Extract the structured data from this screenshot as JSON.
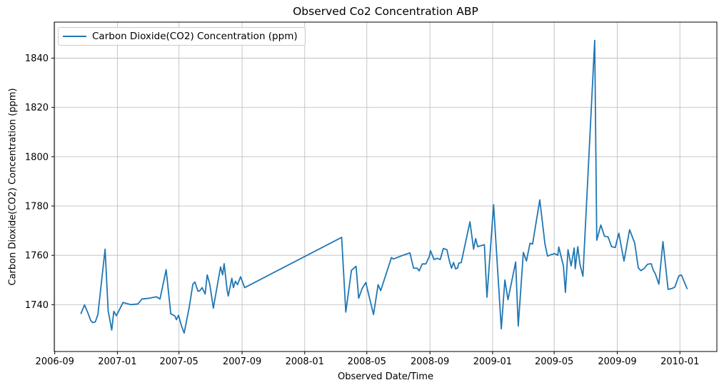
{
  "chart_data": {
    "type": "line",
    "title": "Observed Co2 Concentration ABP",
    "xlabel": "Observed Date/Time",
    "ylabel": "Carbon Dioxide(CO2) Concentration (ppm)",
    "legend": [
      {
        "label": "Carbon Dioxide(CO2) Concentration (ppm)",
        "color": "#1f77b4"
      }
    ],
    "legend_position": "upper left",
    "grid": true,
    "line_color": "#1f77b4",
    "grid_color": "#c0c0c0",
    "spine_color": "#000000",
    "background": "#ffffff",
    "x_ticks": [
      "2006-09",
      "2007-01",
      "2007-05",
      "2007-09",
      "2008-01",
      "2008-05",
      "2008-09",
      "2009-01",
      "2009-05",
      "2009-09",
      "2010-01"
    ],
    "y_ticks": [
      1740,
      1760,
      1780,
      1800,
      1820,
      1840
    ],
    "xlim": [
      "2006-08-31",
      "2010-03-14"
    ],
    "ylim": [
      1721,
      1854.6
    ],
    "series": [
      {
        "name": "Carbon Dioxide(CO2) Concentration (ppm)",
        "points": [
          [
            "2006-10-22",
            1736.4
          ],
          [
            "2006-10-29",
            1739.9
          ],
          [
            "2006-11-05",
            1736.4
          ],
          [
            "2006-11-10",
            1733.6
          ],
          [
            "2006-11-14",
            1732.7
          ],
          [
            "2006-11-19",
            1733.0
          ],
          [
            "2006-11-24",
            1736.0
          ],
          [
            "2006-12-08",
            1762.5
          ],
          [
            "2006-12-14",
            1737.5
          ],
          [
            "2006-12-21",
            1729.7
          ],
          [
            "2006-12-25",
            1737.3
          ],
          [
            "2006-12-30",
            1735.5
          ],
          [
            "2007-01-12",
            1740.9
          ],
          [
            "2007-01-27",
            1740.0
          ],
          [
            "2007-02-10",
            1740.3
          ],
          [
            "2007-02-18",
            1742.3
          ],
          [
            "2007-03-04",
            1742.6
          ],
          [
            "2007-03-18",
            1743.2
          ],
          [
            "2007-03-25",
            1742.3
          ],
          [
            "2007-04-06",
            1754.2
          ],
          [
            "2007-04-15",
            1736.3
          ],
          [
            "2007-04-23",
            1735.4
          ],
          [
            "2007-04-26",
            1733.9
          ],
          [
            "2007-04-30",
            1735.7
          ],
          [
            "2007-05-06",
            1731.3
          ],
          [
            "2007-05-11",
            1728.5
          ],
          [
            "2007-05-21",
            1739.1
          ],
          [
            "2007-05-28",
            1748.3
          ],
          [
            "2007-06-01",
            1749.2
          ],
          [
            "2007-06-07",
            1745.4
          ],
          [
            "2007-06-11",
            1745.7
          ],
          [
            "2007-06-15",
            1746.9
          ],
          [
            "2007-06-21",
            1744.3
          ],
          [
            "2007-06-25",
            1752.1
          ],
          [
            "2007-06-30",
            1748.3
          ],
          [
            "2007-07-07",
            1738.6
          ],
          [
            "2007-07-21",
            1755.3
          ],
          [
            "2007-07-25",
            1752.1
          ],
          [
            "2007-07-28",
            1756.6
          ],
          [
            "2007-08-03",
            1745.7
          ],
          [
            "2007-08-05",
            1743.5
          ],
          [
            "2007-08-12",
            1750.7
          ],
          [
            "2007-08-15",
            1746.9
          ],
          [
            "2007-08-19",
            1749.5
          ],
          [
            "2007-08-23",
            1748.1
          ],
          [
            "2007-08-29",
            1751.3
          ],
          [
            "2007-09-06",
            1746.9
          ],
          [
            "2008-03-13",
            1767.3
          ],
          [
            "2008-03-21",
            1737.0
          ],
          [
            "2008-04-01",
            1753.9
          ],
          [
            "2008-04-10",
            1755.6
          ],
          [
            "2008-04-15",
            1742.6
          ],
          [
            "2008-04-22",
            1746.6
          ],
          [
            "2008-04-29",
            1749.0
          ],
          [
            "2008-05-14",
            1736.0
          ],
          [
            "2008-05-23",
            1748.1
          ],
          [
            "2008-05-28",
            1745.7
          ],
          [
            "2008-06-18",
            1759.1
          ],
          [
            "2008-06-22",
            1758.5
          ],
          [
            "2008-07-10",
            1760.0
          ],
          [
            "2008-07-24",
            1761.0
          ],
          [
            "2008-07-31",
            1754.8
          ],
          [
            "2008-08-07",
            1754.8
          ],
          [
            "2008-08-11",
            1753.7
          ],
          [
            "2008-08-17",
            1756.5
          ],
          [
            "2008-08-24",
            1756.5
          ],
          [
            "2008-08-31",
            1759.7
          ],
          [
            "2008-09-02",
            1761.9
          ],
          [
            "2008-09-09",
            1758.3
          ],
          [
            "2008-09-15",
            1758.8
          ],
          [
            "2008-09-21",
            1758.3
          ],
          [
            "2008-09-27",
            1762.8
          ],
          [
            "2008-10-04",
            1762.3
          ],
          [
            "2008-10-09",
            1757.6
          ],
          [
            "2008-10-13",
            1754.8
          ],
          [
            "2008-10-17",
            1757.1
          ],
          [
            "2008-10-21",
            1754.5
          ],
          [
            "2008-10-25",
            1754.9
          ],
          [
            "2008-10-27",
            1756.8
          ],
          [
            "2008-11-01",
            1757.1
          ],
          [
            "2008-11-18",
            1773.6
          ],
          [
            "2008-11-25",
            1762.5
          ],
          [
            "2008-11-29",
            1766.8
          ],
          [
            "2008-12-03",
            1763.5
          ],
          [
            "2008-12-07",
            1763.8
          ],
          [
            "2008-12-16",
            1764.3
          ],
          [
            "2008-12-21",
            1743.0
          ],
          [
            "2009-01-03",
            1780.5
          ],
          [
            "2009-01-18",
            1730.2
          ],
          [
            "2009-01-25",
            1750.0
          ],
          [
            "2009-01-31",
            1742.0
          ],
          [
            "2009-02-15",
            1757.3
          ],
          [
            "2009-02-20",
            1731.3
          ],
          [
            "2009-03-02",
            1761.2
          ],
          [
            "2009-03-08",
            1757.7
          ],
          [
            "2009-03-15",
            1764.9
          ],
          [
            "2009-03-20",
            1764.6
          ],
          [
            "2009-04-03",
            1782.5
          ],
          [
            "2009-04-13",
            1764.7
          ],
          [
            "2009-04-18",
            1759.7
          ],
          [
            "2009-04-25",
            1760.3
          ],
          [
            "2009-05-02",
            1760.7
          ],
          [
            "2009-05-08",
            1760.0
          ],
          [
            "2009-05-10",
            1763.4
          ],
          [
            "2009-05-19",
            1755.7
          ],
          [
            "2009-05-23",
            1745.0
          ],
          [
            "2009-05-28",
            1762.3
          ],
          [
            "2009-06-03",
            1755.7
          ],
          [
            "2009-06-09",
            1763.0
          ],
          [
            "2009-06-11",
            1754.6
          ],
          [
            "2009-06-16",
            1763.5
          ],
          [
            "2009-06-20",
            1756.6
          ],
          [
            "2009-06-26",
            1751.5
          ],
          [
            "2009-07-19",
            1847.2
          ],
          [
            "2009-07-23",
            1766.1
          ],
          [
            "2009-07-31",
            1772.3
          ],
          [
            "2009-08-07",
            1767.8
          ],
          [
            "2009-08-14",
            1767.5
          ],
          [
            "2009-08-21",
            1763.5
          ],
          [
            "2009-08-28",
            1763.2
          ],
          [
            "2009-09-04",
            1769.0
          ],
          [
            "2009-09-14",
            1757.7
          ],
          [
            "2009-09-25",
            1770.4
          ],
          [
            "2009-10-05",
            1764.9
          ],
          [
            "2009-10-12",
            1754.9
          ],
          [
            "2009-10-17",
            1753.8
          ],
          [
            "2009-10-23",
            1754.6
          ],
          [
            "2009-10-30",
            1756.4
          ],
          [
            "2009-11-06",
            1756.6
          ],
          [
            "2009-11-10",
            1754.0
          ],
          [
            "2009-11-14",
            1752.6
          ],
          [
            "2009-11-21",
            1748.3
          ],
          [
            "2009-11-29",
            1765.6
          ],
          [
            "2009-12-09",
            1746.2
          ],
          [
            "2009-12-16",
            1746.5
          ],
          [
            "2009-12-22",
            1747.1
          ],
          [
            "2009-12-30",
            1751.7
          ],
          [
            "2010-01-04",
            1752.0
          ],
          [
            "2010-01-15",
            1746.5
          ]
        ]
      }
    ]
  }
}
